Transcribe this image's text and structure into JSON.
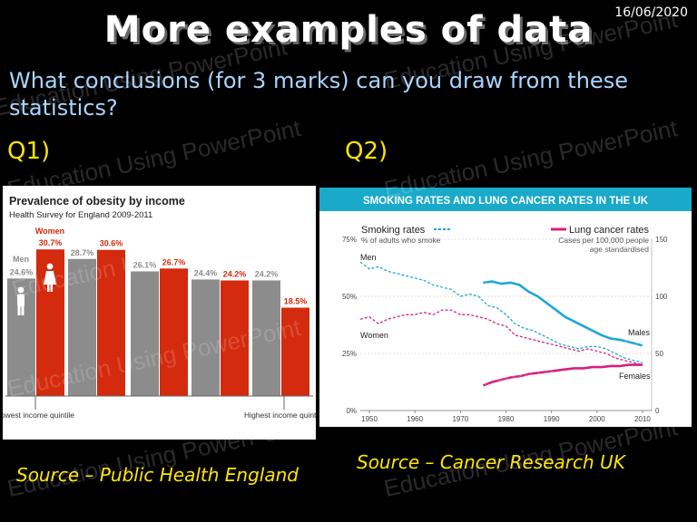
{
  "date": "16/06/2020",
  "title": "More examples of data",
  "question": "What conclusions (for 3 marks) can you draw from these statistics?",
  "q1_label": "Q1)",
  "q2_label": "Q2)",
  "source1": "Source – Public Health England",
  "source2": "Source – Cancer Research UK",
  "watermark": "Education Using PowerPoint",
  "colors": {
    "men_bar": "#8c8c8c",
    "women_bar": "#d42a0d",
    "smoking_blue": "#1ea6d8",
    "smoking_pink": "#d4217e",
    "header_teal": "#1aa9c9"
  },
  "chart_data": [
    {
      "type": "bar",
      "title": "Prevalence of obesity by income",
      "subtitle": "Health Survey for England 2009-2011",
      "categories": [
        "Lowest income quintile",
        "",
        "",
        "",
        "Highest income quintile"
      ],
      "category_labels": {
        "lowest": "Lowest income quintile",
        "highest": "Highest income quintile"
      },
      "series": [
        {
          "name": "Men",
          "values": [
            24.6,
            28.7,
            26.1,
            24.4,
            24.2
          ],
          "labels": [
            "24.6%",
            "28.7%",
            "26.1%",
            "24.4%",
            "24.2%"
          ]
        },
        {
          "name": "Women",
          "values": [
            30.7,
            30.6,
            26.7,
            24.2,
            18.5
          ],
          "labels": [
            "30.7%",
            "30.6%",
            "26.7%",
            "24.2%",
            "18.5%"
          ]
        }
      ]
    },
    {
      "type": "line",
      "title": "SMOKING RATES AND LUNG CANCER RATES IN THE UK",
      "left_axis": {
        "title": "Smoking rates",
        "subtitle": "% of adults who smoke",
        "ticks": [
          "0%",
          "25%",
          "50%",
          "75%"
        ],
        "ylim": [
          0,
          75
        ]
      },
      "right_axis": {
        "title": "Lung cancer rates",
        "subtitle": "Cases per 100,000 people age standardised",
        "ticks": [
          "0",
          "50",
          "100",
          "150"
        ],
        "ylim": [
          0,
          150
        ]
      },
      "x_ticks": [
        "1950",
        "1960",
        "1970",
        "1980",
        "1990",
        "2000",
        "2010"
      ],
      "xlim": [
        1948,
        2012
      ],
      "series_labels": {
        "men": "Men",
        "women": "Women",
        "males": "Males",
        "females": "Females"
      },
      "series": [
        {
          "name": "Men",
          "axis": "left",
          "style": "dashed",
          "color": "blue",
          "x": [
            1948,
            1950,
            1952,
            1954,
            1956,
            1958,
            1960,
            1962,
            1964,
            1966,
            1968,
            1970,
            1972,
            1974,
            1976,
            1978,
            1980,
            1982,
            1984,
            1986,
            1988,
            1990,
            1992,
            1994,
            1996,
            1998,
            2000,
            2002,
            2004,
            2006,
            2008,
            2010
          ],
          "y": [
            65,
            62,
            63,
            61,
            60,
            59,
            58,
            57,
            55,
            54,
            53,
            50,
            51,
            50,
            46,
            45,
            42,
            38,
            36,
            35,
            33,
            31,
            29,
            28,
            27,
            28,
            28,
            27,
            25,
            23,
            22,
            21
          ]
        },
        {
          "name": "Women",
          "axis": "left",
          "style": "dashed",
          "color": "pink",
          "x": [
            1948,
            1950,
            1952,
            1954,
            1956,
            1958,
            1960,
            1962,
            1964,
            1966,
            1968,
            1970,
            1972,
            1974,
            1976,
            1978,
            1980,
            1982,
            1984,
            1986,
            1988,
            1990,
            1992,
            1994,
            1996,
            1998,
            2000,
            2002,
            2004,
            2006,
            2008,
            2010
          ],
          "y": [
            40,
            41,
            38,
            40,
            41,
            42,
            42,
            43,
            42,
            44,
            44,
            42,
            42,
            41,
            40,
            38,
            37,
            33,
            32,
            31,
            30,
            29,
            28,
            27,
            26,
            27,
            26,
            25,
            23,
            22,
            21,
            20
          ]
        },
        {
          "name": "Males",
          "axis": "right",
          "style": "solid",
          "color": "blue",
          "x": [
            1975,
            1977,
            1979,
            1981,
            1983,
            1985,
            1987,
            1989,
            1991,
            1993,
            1995,
            1997,
            1999,
            2001,
            2003,
            2005,
            2007,
            2010
          ],
          "y": [
            112,
            113,
            111,
            112,
            110,
            104,
            100,
            94,
            88,
            82,
            78,
            74,
            70,
            66,
            63,
            62,
            60,
            57
          ]
        },
        {
          "name": "Females",
          "axis": "right",
          "style": "solid",
          "color": "pink",
          "x": [
            1975,
            1977,
            1979,
            1981,
            1983,
            1985,
            1987,
            1989,
            1991,
            1993,
            1995,
            1997,
            1999,
            2001,
            2003,
            2005,
            2007,
            2010
          ],
          "y": [
            22,
            25,
            27,
            29,
            30,
            32,
            33,
            34,
            35,
            36,
            37,
            37,
            38,
            38,
            39,
            39,
            40,
            40
          ]
        }
      ]
    }
  ]
}
